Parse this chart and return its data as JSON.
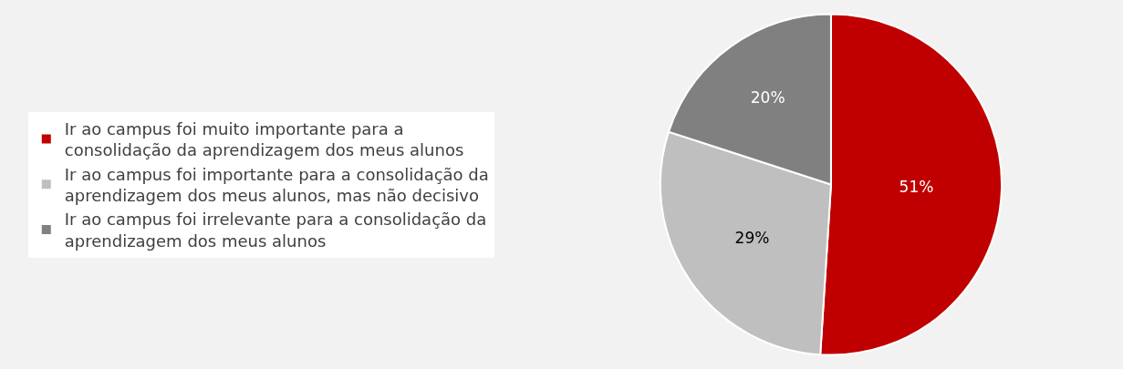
{
  "chart_data": {
    "type": "pie",
    "categories": [
      "Ir ao campus foi muito importante para a consolidação da aprendizagem dos meus alunos",
      "Ir ao campus foi importante para a consolidação da aprendizagem dos meus alunos, mas não decisivo",
      "Ir ao campus foi irrelevante para a consolidação da aprendizagem dos meus alunos"
    ],
    "values": [
      51,
      29,
      20
    ],
    "colors": [
      "#c00000",
      "#bfbfbf",
      "#808080"
    ],
    "value_labels": [
      "51%",
      "29%",
      "20%"
    ],
    "legend": "left"
  }
}
